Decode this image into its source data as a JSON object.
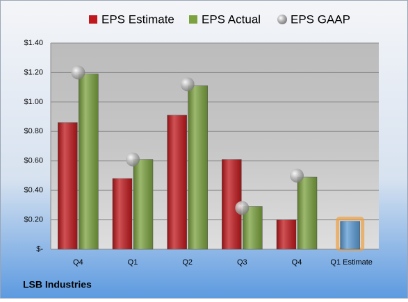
{
  "chart_data": {
    "type": "bar",
    "title": "LSB Industries",
    "categories": [
      "Q4",
      "Q1",
      "Q2",
      "Q3",
      "Q4",
      "Q1 Estimate"
    ],
    "series": [
      {
        "name": "EPS Estimate",
        "color": "#c0181c",
        "values": [
          0.86,
          0.48,
          0.91,
          0.61,
          0.2,
          0.19
        ]
      },
      {
        "name": "EPS Actual",
        "color": "#7ba23f",
        "values": [
          1.19,
          0.61,
          1.11,
          0.29,
          0.49,
          null
        ]
      },
      {
        "name": "EPS GAAP",
        "color": "#a6a6a6",
        "marker": "sphere",
        "values": [
          1.2,
          0.61,
          1.12,
          0.28,
          0.5,
          null
        ]
      }
    ],
    "forecast_color": "#5b9bd5",
    "ylim": [
      0,
      1.4
    ],
    "yticks": [
      {
        "value": 0,
        "label": "$-"
      },
      {
        "value": 0.2,
        "label": "$0.20"
      },
      {
        "value": 0.4,
        "label": "$0.40"
      },
      {
        "value": 0.6,
        "label": "$0.60"
      },
      {
        "value": 0.8,
        "label": "$0.80"
      },
      {
        "value": 1.0,
        "label": "$1.00"
      },
      {
        "value": 1.2,
        "label": "$1.20"
      },
      {
        "value": 1.4,
        "label": "$1.40"
      }
    ],
    "grid": true
  }
}
